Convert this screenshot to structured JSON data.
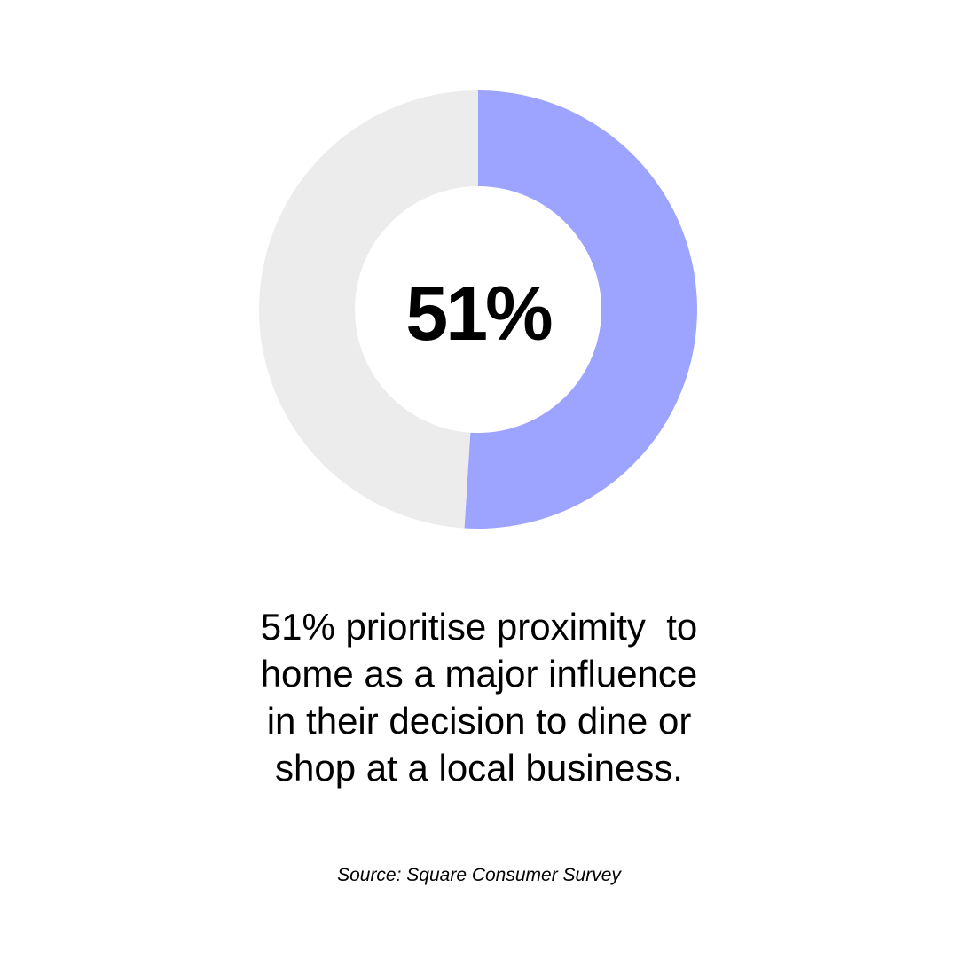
{
  "chart_data": {
    "type": "pie",
    "center_label": "51%",
    "slices": [
      {
        "value": 51,
        "color": "#9da4ff"
      },
      {
        "value": 49,
        "color": "#ececec"
      }
    ]
  },
  "caption": {
    "lines": [
      "51% prioritise proximity  to",
      "home as a major influence",
      "in their decision to dine or",
      "shop at a local business."
    ]
  },
  "source": "Source: Square Consumer Survey"
}
